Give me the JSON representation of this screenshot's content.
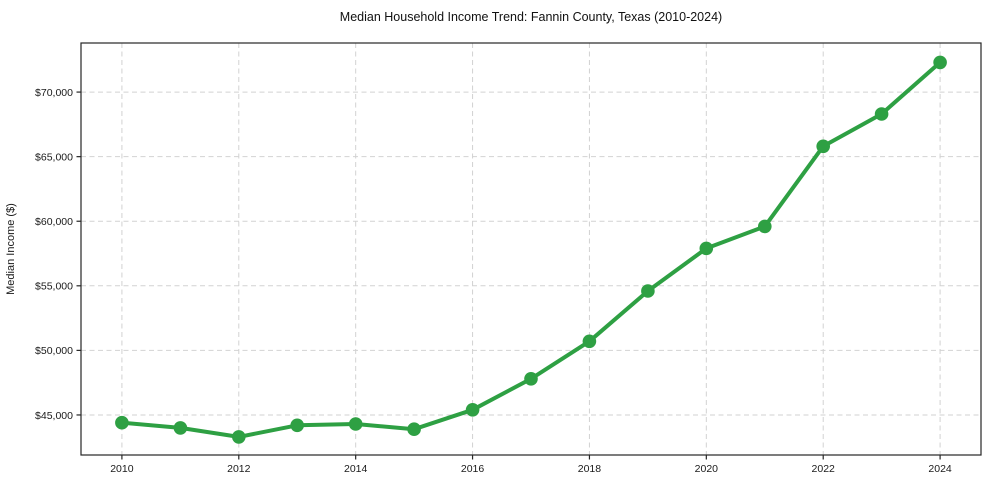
{
  "chart_data": {
    "type": "line",
    "title": "Median Household Income Trend: Fannin County, Texas (2010-2024)",
    "xlabel": "",
    "ylabel": "Median Income ($)",
    "x": [
      2010,
      2011,
      2012,
      2013,
      2014,
      2015,
      2016,
      2017,
      2018,
      2019,
      2020,
      2021,
      2022,
      2023,
      2024
    ],
    "values": [
      44400,
      44000,
      43300,
      44200,
      44300,
      43900,
      45400,
      47800,
      50700,
      54600,
      57900,
      59600,
      65800,
      68300,
      72300
    ],
    "xlim": [
      2009.3,
      2024.7
    ],
    "ylim": [
      41900,
      73800
    ],
    "x_ticks": [
      2010,
      2012,
      2014,
      2016,
      2018,
      2020,
      2022,
      2024
    ],
    "x_tick_labels": [
      "2010",
      "2012",
      "2014",
      "2016",
      "2018",
      "2020",
      "2022",
      "2024"
    ],
    "y_ticks": [
      45000,
      50000,
      55000,
      60000,
      65000,
      70000
    ],
    "y_tick_labels": [
      "$45,000",
      "$50,000",
      "$55,000",
      "$60,000",
      "$65,000",
      "$70,000"
    ],
    "grid": true,
    "legend": "none",
    "marker": "circle",
    "colors": {
      "line": "#2ea043",
      "marker": "#2ea043",
      "grid": "#d2d2d2",
      "axis": "#262626",
      "text": "#1a1a1a",
      "background": "#ffffff"
    }
  }
}
